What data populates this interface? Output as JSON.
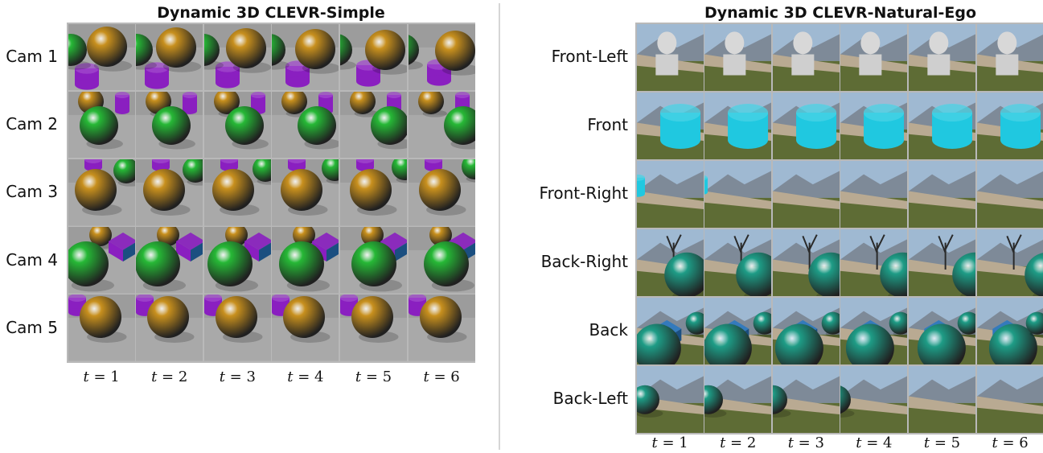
{
  "colors": {
    "gold": "#c8901e",
    "green": "#26b836",
    "purple": "#8a1fc0",
    "cyan": "#20c8e0",
    "teal": "#1e9c86",
    "blue": "#2c78c0",
    "floor": "#a9a9a9",
    "sky": "#9fb9d2",
    "grass": "#5e6c35",
    "wall": "#b9aa92"
  },
  "left_panel": {
    "title": "Dynamic 3D CLEVR-Simple",
    "rows": [
      {
        "label": "Cam 1"
      },
      {
        "label": "Cam 2"
      },
      {
        "label": "Cam 3"
      },
      {
        "label": "Cam 4"
      },
      {
        "label": "Cam 5"
      }
    ],
    "time_labels": [
      {
        "var": "t",
        "rest": " = 1"
      },
      {
        "var": "t",
        "rest": " = 2"
      },
      {
        "var": "t",
        "rest": " = 3"
      },
      {
        "var": "t",
        "rest": " = 4"
      },
      {
        "var": "t",
        "rest": " = 5"
      },
      {
        "var": "t",
        "rest": " = 6"
      }
    ]
  },
  "right_panel": {
    "title": "Dynamic 3D CLEVR-Natural-Ego",
    "rows": [
      {
        "label": "Front-Left"
      },
      {
        "label": "Front"
      },
      {
        "label": "Front-Right"
      },
      {
        "label": "Back-Right"
      },
      {
        "label": "Back"
      },
      {
        "label": "Back-Left"
      }
    ],
    "time_labels": [
      {
        "var": "t",
        "rest": " = 1"
      },
      {
        "var": "t",
        "rest": " = 2"
      },
      {
        "var": "t",
        "rest": " = 3"
      },
      {
        "var": "t",
        "rest": " = 4"
      },
      {
        "var": "t",
        "rest": " = 5"
      },
      {
        "var": "t",
        "rest": " = 6"
      }
    ]
  }
}
